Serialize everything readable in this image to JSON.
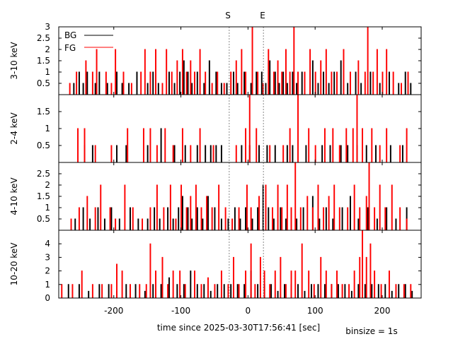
{
  "figure": {
    "xlabel": "time since 2025-03-30T17:56:41 [sec]",
    "binsize_label": "binsize = 1s",
    "marker_start": "S",
    "marker_end": "E"
  },
  "colors": {
    "bg": "#000000",
    "fg": "#ff0000",
    "marker": "#888888"
  },
  "chart_data": {
    "type": "line",
    "style": "histogram-steps",
    "xlim": [
      -282,
      258
    ],
    "xticks": [
      -200,
      -100,
      0,
      100,
      200
    ],
    "xtick_labels": [
      "-200",
      "-100",
      "0",
      "100",
      "200"
    ],
    "start_marker_x": -28,
    "end_marker_x": 23,
    "grid": false,
    "legend": {
      "position": "top-left",
      "entries": [
        "BG",
        "FG"
      ]
    },
    "panels": [
      {
        "ylabel": "3-10 keV",
        "ylim": [
          0,
          3
        ],
        "yticks": [
          0.5,
          1,
          1.5,
          2,
          2.5,
          3
        ],
        "ytick_labels": [
          "0.5",
          "1",
          "1.5",
          "2",
          "2.5",
          "3"
        ],
        "series": [
          {
            "name": "BG",
            "x": [
              -260,
              -252,
              -246,
              -240,
              -228,
              -222,
              -210,
              -196,
              -188,
              -178,
              -166,
              -150,
              -142,
              -134,
              -118,
              -110,
              -102,
              -96,
              -90,
              -84,
              -76,
              -66,
              -58,
              -48,
              -40,
              -32,
              -22,
              -16,
              -6,
              4,
              12,
              20,
              26,
              32,
              40,
              46,
              52,
              58,
              66,
              72,
              80,
              96,
              104,
              112,
              120,
              128,
              138,
              148,
              160,
              168,
              182,
              196,
              210,
              224,
              234,
              242
            ],
            "y": [
              0.5,
              1,
              0.5,
              1,
              0.5,
              1,
              0.5,
              1,
              0.5,
              0.5,
              1,
              0.5,
              1,
              0.5,
              1,
              0.5,
              1,
              1.5,
              1,
              0.5,
              1,
              0.5,
              1.5,
              1,
              0.5,
              0.5,
              1,
              0.5,
              1,
              0.5,
              1,
              1,
              0.5,
              1.5,
              1,
              0.5,
              1,
              0.5,
              1,
              0.5,
              1,
              1.5,
              0.5,
              1,
              0.5,
              1,
              1.5,
              0.5,
              1,
              0.5,
              1,
              0.5,
              1,
              0.5,
              1,
              0.5
            ]
          },
          {
            "name": "FG",
            "x": [
              -266,
              -256,
              -242,
              -232,
              -226,
              -212,
              -204,
              -198,
              -186,
              -174,
              -160,
              -154,
              -146,
              -138,
              -128,
              -122,
              -114,
              -106,
              -98,
              -92,
              -86,
              -80,
              -72,
              -64,
              -54,
              -46,
              -36,
              -26,
              -18,
              -10,
              -4,
              6,
              14,
              22,
              30,
              38,
              44,
              50,
              56,
              62,
              68,
              74,
              84,
              92,
              100,
              108,
              116,
              124,
              132,
              142,
              152,
              164,
              174,
              178,
              186,
              192,
              200,
              206,
              216,
              228,
              238
            ],
            "y": [
              0.5,
              1,
              1.5,
              1,
              2,
              1,
              0.5,
              2,
              1,
              0.5,
              1,
              2,
              1,
              2,
              0.5,
              2,
              1,
              1.5,
              2,
              1,
              1.5,
              1,
              2,
              1,
              0.5,
              1,
              0.5,
              1,
              1.5,
              2,
              1,
              3,
              1,
              0.5,
              2,
              1,
              1.5,
              1,
              2,
              1,
              3,
              1,
              1,
              2,
              1,
              1.5,
              2,
              1,
              1,
              2,
              1,
              1.5,
              1,
              3,
              1,
              2,
              1,
              2,
              1,
              0.5,
              1
            ]
          }
        ]
      },
      {
        "ylabel": "2-4 keV",
        "ylim": [
          0,
          2
        ],
        "yticks": [
          0.5,
          1,
          1.5
        ],
        "ytick_labels": [
          "0.5",
          "1",
          "1.5"
        ],
        "series": [
          {
            "name": "BG",
            "x": [
              -244,
              -232,
              -196,
              -182,
              -150,
              -130,
              -110,
              -94,
              -76,
              -64,
              -56,
              -48,
              -40,
              -10,
              2,
              16,
              28,
              40,
              58,
              66,
              86,
              110,
              122,
              138,
              148,
              162,
              176,
              190,
              212,
              230
            ],
            "y": [
              0.5,
              0.5,
              0.5,
              0.5,
              0.5,
              1,
              0.5,
              0.5,
              0.5,
              0.5,
              0.5,
              0.5,
              0.5,
              0.5,
              0.5,
              0.5,
              0.5,
              0.5,
              0.5,
              0.5,
              0.5,
              0.5,
              0.5,
              0.5,
              0.5,
              0.5,
              0.5,
              0.5,
              0.5,
              0.5
            ]
          },
          {
            "name": "FG",
            "x": [
              -254,
              -244,
              -228,
              -204,
              -180,
              -156,
              -146,
              -136,
              -124,
              -112,
              -98,
              -86,
              -72,
              -52,
              -18,
              -4,
              2,
              12,
              32,
              52,
              62,
              74,
              90,
              100,
              114,
              126,
              136,
              146,
              156,
              162,
              170,
              184,
              196,
              206,
              226,
              236
            ],
            "y": [
              1,
              1,
              0.5,
              0.5,
              1,
              1,
              1,
              0.5,
              1,
              0.5,
              1,
              0.5,
              1,
              0.5,
              0.5,
              1,
              2,
              1,
              0.5,
              0.5,
              1,
              2,
              1,
              0.5,
              1,
              1,
              0.5,
              1,
              1,
              2,
              1,
              1,
              0.5,
              1,
              0.5,
              1
            ]
          }
        ]
      },
      {
        "ylabel": "4-10 keV",
        "ylim": [
          0,
          3
        ],
        "yticks": [
          0.5,
          1,
          1.5,
          2,
          2.5
        ],
        "ytick_labels": [
          "0.5",
          "1",
          "1.5",
          "2",
          "2.5"
        ],
        "series": [
          {
            "name": "BG",
            "x": [
              -258,
              -246,
              -236,
              -224,
              -214,
              -204,
              -192,
              -176,
              -164,
              -150,
              -140,
              -132,
              -120,
              -112,
              -104,
              -98,
              -90,
              -84,
              -76,
              -68,
              -60,
              -50,
              -40,
              -30,
              -20,
              -12,
              -4,
              6,
              14,
              22,
              30,
              38,
              48,
              56,
              64,
              72,
              82,
              96,
              106,
              116,
              126,
              140,
              152,
              164,
              178,
              192,
              206,
              220,
              236
            ],
            "y": [
              0.5,
              1,
              0.5,
              1,
              0.5,
              1,
              0.5,
              1,
              0.5,
              0.5,
              1,
              0.5,
              1,
              0.5,
              1,
              1.5,
              1,
              0.5,
              1,
              0.5,
              1.5,
              1,
              0.5,
              0.5,
              1,
              0.5,
              1,
              0.5,
              1,
              2,
              1,
              0.5,
              1,
              0.5,
              1,
              0.5,
              1,
              1.5,
              0.5,
              1,
              0.5,
              1,
              1.5,
              0.5,
              1,
              0.5,
              1,
              0.5,
              1
            ]
          },
          {
            "name": "FG",
            "x": [
              -264,
              -252,
              -240,
              -228,
              -220,
              -206,
              -198,
              -184,
              -172,
              -158,
              -146,
              -136,
              -126,
              -116,
              -108,
              -100,
              -92,
              -86,
              -78,
              -70,
              -62,
              -54,
              -44,
              -34,
              -24,
              -14,
              -2,
              4,
              16,
              26,
              36,
              44,
              50,
              58,
              64,
              70,
              78,
              88,
              96,
              104,
              112,
              120,
              128,
              136,
              148,
              158,
              166,
              176,
              180,
              188,
              196,
              204,
              214,
              226,
              236
            ],
            "y": [
              0.5,
              1,
              1.5,
              1,
              2,
              1,
              0.5,
              2,
              1,
              0.5,
              1,
              2,
              1,
              2,
              0.5,
              2,
              1,
              1.5,
              2,
              1,
              1.5,
              1,
              2,
              1,
              0.5,
              1,
              2,
              1,
              1.5,
              2,
              1,
              2,
              1,
              2,
              1,
              3,
              1,
              1.5,
              1,
              2,
              1,
              1.5,
              2,
              1,
              1,
              2,
              1,
              1.5,
              3,
              1,
              2,
              1,
              2,
              1,
              0.5
            ]
          }
        ]
      },
      {
        "ylabel": "10-20 keV",
        "ylim": [
          0,
          5
        ],
        "yticks": [
          0,
          1,
          2,
          3,
          4
        ],
        "ytick_labels": [
          "0",
          "1",
          "2",
          "3",
          "4"
        ],
        "series": [
          {
            "name": "BG",
            "x": [
              -268,
              -252,
              -238,
              -222,
              -208,
              -196,
              -182,
              -168,
              -154,
              -142,
              -130,
              -118,
              -106,
              -96,
              -86,
              -76,
              -66,
              -56,
              -46,
              -36,
              -26,
              -16,
              -6,
              4,
              14,
              24,
              34,
              44,
              54,
              64,
              74,
              84,
              94,
              104,
              114,
              124,
              134,
              144,
              154,
              164,
              174,
              184,
              194,
              204,
              214,
              224,
              234,
              244
            ],
            "y": [
              1,
              1,
              0.5,
              1,
              1,
              0.5,
              1,
              1,
              0.5,
              1,
              1,
              1.5,
              1,
              1,
              2,
              1,
              1,
              0.5,
              1,
              1,
              1,
              1,
              1,
              2,
              1,
              1,
              1,
              0.5,
              1,
              1,
              1,
              0.5,
              1,
              1,
              1,
              1,
              1,
              1,
              0.5,
              1,
              1,
              1,
              1,
              1,
              0.5,
              1,
              1,
              0.5
            ]
          },
          {
            "name": "FG",
            "x": [
              -278,
              -262,
              -248,
              -232,
              -218,
              -204,
              -196,
              -188,
              -176,
              -162,
              -152,
              -146,
              -138,
              -128,
              -120,
              -112,
              -102,
              -94,
              -80,
              -70,
              -60,
              -50,
              -40,
              -30,
              -22,
              -14,
              -4,
              4,
              10,
              18,
              24,
              32,
              40,
              48,
              56,
              64,
              70,
              80,
              90,
              98,
              108,
              116,
              124,
              132,
              140,
              150,
              158,
              166,
              170,
              176,
              182,
              188,
              198,
              210,
              220,
              232,
              242
            ],
            "y": [
              1,
              1,
              2,
              1,
              1,
              1,
              2.5,
              2,
              1,
              1,
              1,
              4,
              2,
              3,
              1,
              2,
              2,
              1,
              2,
              1,
              1.5,
              1,
              2,
              1,
              3,
              1,
              2,
              4,
              1,
              3,
              2,
              1,
              2,
              3,
              1,
              2,
              2,
              4,
              2,
              1,
              3,
              2,
              1,
              2,
              1,
              1,
              2,
              3,
              5,
              3,
              4,
              2,
              1,
              2,
              1,
              1,
              1
            ]
          }
        ]
      }
    ]
  }
}
